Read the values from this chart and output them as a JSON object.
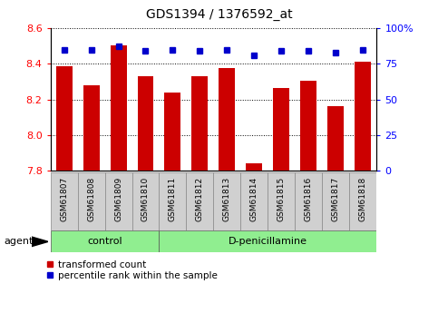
{
  "title": "GDS1394 / 1376592_at",
  "samples": [
    "GSM61807",
    "GSM61808",
    "GSM61809",
    "GSM61810",
    "GSM61811",
    "GSM61812",
    "GSM61813",
    "GSM61814",
    "GSM61815",
    "GSM61816",
    "GSM61817",
    "GSM61818"
  ],
  "bar_values": [
    8.385,
    8.28,
    8.505,
    8.33,
    8.24,
    8.33,
    8.375,
    7.84,
    8.265,
    8.305,
    8.16,
    8.41
  ],
  "percentile_values": [
    85,
    85,
    87,
    84,
    85,
    84,
    85,
    81,
    84,
    84,
    83,
    85
  ],
  "y_min": 7.8,
  "y_max": 8.6,
  "y_ticks": [
    7.8,
    8.0,
    8.2,
    8.4,
    8.6
  ],
  "y2_ticks": [
    0,
    25,
    50,
    75,
    100
  ],
  "bar_color": "#cc0000",
  "dot_color": "#0000cc",
  "n_control": 4,
  "n_total": 12,
  "control_label": "control",
  "treatment_label": "D-penicillamine",
  "agent_label": "agent",
  "legend_bar_label": "transformed count",
  "legend_dot_label": "percentile rank within the sample",
  "tick_bg_color": "#d0d0d0",
  "group_box_color": "#90ee90"
}
